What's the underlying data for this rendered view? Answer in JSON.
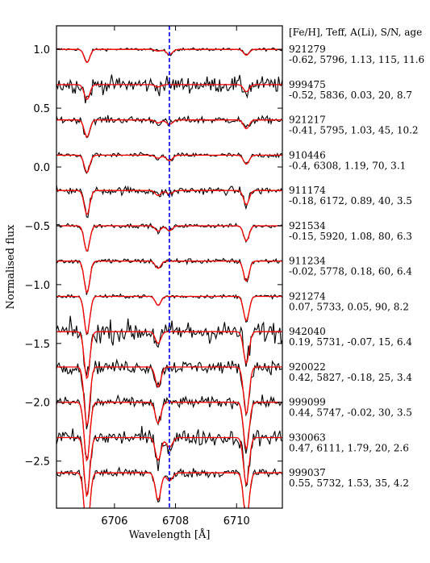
{
  "chart_data": {
    "type": "line",
    "xlabel": "Wavelength [Å]",
    "ylabel": "Normalised flux",
    "xlim": [
      6704.1,
      6711.5
    ],
    "ylim": [
      -2.9,
      1.2
    ],
    "xticks": [
      6706,
      6708,
      6710
    ],
    "xtick_labels": [
      "6706",
      "6708",
      "6710"
    ],
    "yticks": [
      1.0,
      0.5,
      0.0,
      -0.5,
      -1.0,
      -1.5,
      -2.0,
      -2.5
    ],
    "ytick_labels": [
      "1.0",
      "0.5",
      "0.0",
      "−0.5",
      "−1.0",
      "−1.5",
      "−2.0",
      "−2.5"
    ],
    "legend_header": "[Fe/H], Teff, A(Li), S/N, age",
    "reference_line": {
      "x": 6707.8,
      "color": "#0000ff",
      "style": "dashed"
    },
    "colors": {
      "observed": "#000000",
      "model": "#ff0000",
      "reference": "#0000ff"
    },
    "lines": {
      "Fe_6705": {
        "wl": 6705.1,
        "base_depth": 0.1
      },
      "Fe_6707": {
        "wl": 6707.43,
        "base_depth": 0.05
      },
      "Li_6708": {
        "wl": 6707.8,
        "base_depth": 0.0
      },
      "Ni_6710": {
        "wl": 6710.32,
        "base_depth": 0.07
      }
    },
    "series": [
      {
        "star": "921279",
        "params": "-0.62, 5796, 1.13, 115, 11.6",
        "offset": 1.0,
        "feh": -0.62,
        "ali": 1.13,
        "sn": 115
      },
      {
        "star": "999475",
        "params": "-0.52, 5836, 0.03, 20, 8.7",
        "offset": 0.7,
        "feh": -0.52,
        "ali": 0.03,
        "sn": 20
      },
      {
        "star": "921217",
        "params": "-0.41, 5795, 1.03, 45, 10.2",
        "offset": 0.4,
        "feh": -0.41,
        "ali": 1.03,
        "sn": 45
      },
      {
        "star": "910446",
        "params": "-0.4, 6308, 1.19, 70, 3.1",
        "offset": 0.1,
        "feh": -0.4,
        "ali": 1.19,
        "sn": 70
      },
      {
        "star": "911174",
        "params": "-0.18, 6172, 0.89, 40, 3.5",
        "offset": -0.2,
        "feh": -0.18,
        "ali": 0.89,
        "sn": 40
      },
      {
        "star": "921534",
        "params": "-0.15, 5920, 1.08, 80, 6.3",
        "offset": -0.5,
        "feh": -0.15,
        "ali": 1.08,
        "sn": 80
      },
      {
        "star": "911234",
        "params": "-0.02, 5778, 0.18, 60, 6.4",
        "offset": -0.8,
        "feh": -0.02,
        "ali": 0.18,
        "sn": 60
      },
      {
        "star": "921274",
        "params": "0.07, 5733, 0.05, 90, 8.2",
        "offset": -1.1,
        "feh": 0.07,
        "ali": 0.05,
        "sn": 90
      },
      {
        "star": "942040",
        "params": "0.19, 5731, -0.07, 15, 6.4",
        "offset": -1.4,
        "feh": 0.19,
        "ali": -0.07,
        "sn": 15
      },
      {
        "star": "920022",
        "params": "0.42, 5827, -0.18, 25, 3.4",
        "offset": -1.7,
        "feh": 0.42,
        "ali": -0.18,
        "sn": 25
      },
      {
        "star": "999099",
        "params": "0.44, 5747, -0.02, 30, 3.5",
        "offset": -2.0,
        "feh": 0.44,
        "ali": -0.02,
        "sn": 30
      },
      {
        "star": "930063",
        "params": "0.47, 6111, 1.79, 20, 2.6",
        "offset": -2.3,
        "feh": 0.47,
        "ali": 1.79,
        "sn": 20
      },
      {
        "star": "999037",
        "params": "0.55, 5732, 1.53, 35, 4.2",
        "offset": -2.6,
        "feh": 0.55,
        "ali": 1.53,
        "sn": 35
      }
    ]
  }
}
